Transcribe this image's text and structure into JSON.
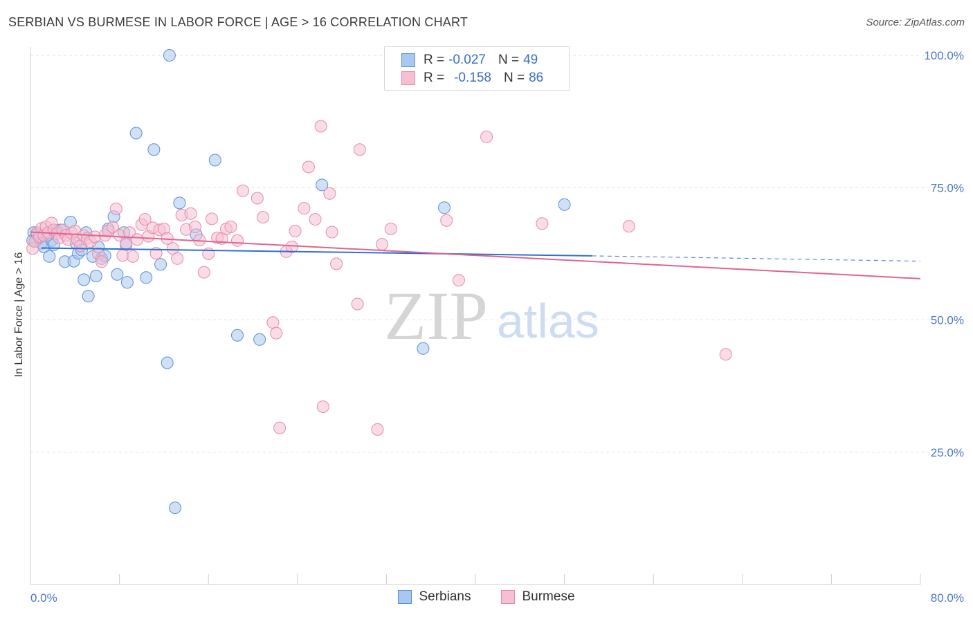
{
  "title": "SERBIAN VS BURMESE IN LABOR FORCE | AGE > 16 CORRELATION CHART",
  "source": "Source: ZipAtlas.com",
  "watermark": {
    "zip": "ZIP",
    "atlas": "atlas"
  },
  "legend": {
    "r_label": "R =",
    "n_label": "N =",
    "rows": [
      {
        "r": "-0.027",
        "n": "49"
      },
      {
        "r": "-0.158",
        "n": "86"
      }
    ]
  },
  "colors": {
    "serbians_fill": "#a9c8ef",
    "serbians_stroke": "#5b8fd6",
    "serbians_line": "#2e6fd0",
    "burmese_fill": "#f6bfd2",
    "burmese_stroke": "#e68aa9",
    "burmese_line": "#e0648f",
    "tick_color": "#4a78c4"
  },
  "chart_data": {
    "type": "scatter",
    "title": "SERBIAN VS BURMESE IN LABOR FORCE | AGE > 16 CORRELATION CHART",
    "xlabel": "",
    "ylabel": "In Labor Force | Age > 16",
    "xlim": [
      0,
      80
    ],
    "ylim": [
      0,
      102
    ],
    "x_tick_labels": [
      "0.0%",
      "80.0%"
    ],
    "y_ticks": [
      25,
      50,
      75,
      100
    ],
    "y_tick_labels": [
      "25.0%",
      "50.0%",
      "75.0%",
      "100.0%"
    ],
    "grid": true,
    "legend_position": "bottom",
    "series": [
      {
        "name": "Serbians",
        "r": -0.027,
        "n": 49,
        "trend": {
          "x0": 1.0,
          "y0": 63.6,
          "x1": 50.5,
          "y1": 62.1,
          "dashed_to_x": 80,
          "dashed_to_y": 61.1
        },
        "points": [
          [
            0.3,
            66.5
          ],
          [
            0.5,
            65.0
          ],
          [
            0.8,
            65.5
          ],
          [
            1.0,
            64.5
          ],
          [
            1.2,
            63.8
          ],
          [
            1.5,
            66.0
          ],
          [
            1.7,
            62.0
          ],
          [
            1.9,
            65.0
          ],
          [
            2.1,
            64.2
          ],
          [
            2.4,
            66.8
          ],
          [
            2.7,
            67.0
          ],
          [
            3.1,
            61.0
          ],
          [
            3.6,
            68.5
          ],
          [
            3.9,
            61.1
          ],
          [
            4.1,
            64.5
          ],
          [
            4.3,
            62.6
          ],
          [
            4.6,
            63.2
          ],
          [
            4.8,
            57.6
          ],
          [
            5.0,
            66.5
          ],
          [
            5.2,
            54.5
          ],
          [
            5.6,
            62.0
          ],
          [
            5.9,
            58.3
          ],
          [
            6.1,
            63.8
          ],
          [
            6.4,
            61.6
          ],
          [
            6.7,
            62.1
          ],
          [
            7.0,
            67.2
          ],
          [
            7.5,
            69.5
          ],
          [
            7.8,
            58.6
          ],
          [
            8.4,
            66.5
          ],
          [
            8.6,
            64.2
          ],
          [
            8.7,
            57.1
          ],
          [
            9.5,
            85.3
          ],
          [
            10.4,
            58.0
          ],
          [
            11.1,
            82.2
          ],
          [
            11.7,
            60.5
          ],
          [
            12.3,
            41.9
          ],
          [
            12.5,
            100.0
          ],
          [
            13.0,
            14.5
          ],
          [
            13.4,
            72.1
          ],
          [
            14.9,
            66.1
          ],
          [
            16.6,
            80.2
          ],
          [
            18.6,
            47.1
          ],
          [
            20.6,
            46.3
          ],
          [
            26.2,
            75.5
          ],
          [
            35.3,
            44.6
          ],
          [
            37.2,
            71.2
          ],
          [
            48.0,
            71.8
          ],
          [
            0.2,
            65.0
          ],
          [
            0.6,
            66.2
          ]
        ]
      },
      {
        "name": "Burmese",
        "r": -0.158,
        "n": 86,
        "trend": {
          "x0": 0,
          "y0": 66.6,
          "x1": 80,
          "y1": 57.8
        },
        "points": [
          [
            0.2,
            63.5
          ],
          [
            0.4,
            64.8
          ],
          [
            0.6,
            66.5
          ],
          [
            0.8,
            65.7
          ],
          [
            1.0,
            67.3
          ],
          [
            1.2,
            66.0
          ],
          [
            1.4,
            67.6
          ],
          [
            1.6,
            66.5
          ],
          [
            1.9,
            68.3
          ],
          [
            2.1,
            67.0
          ],
          [
            2.4,
            66.3
          ],
          [
            2.6,
            65.5
          ],
          [
            2.9,
            67.0
          ],
          [
            3.2,
            66.0
          ],
          [
            3.4,
            65.2
          ],
          [
            3.7,
            66.4
          ],
          [
            4.0,
            66.8
          ],
          [
            4.2,
            65.2
          ],
          [
            4.5,
            64.0
          ],
          [
            4.8,
            65.9
          ],
          [
            5.1,
            65.4
          ],
          [
            5.4,
            64.8
          ],
          [
            5.8,
            65.7
          ],
          [
            6.1,
            62.5
          ],
          [
            6.4,
            61.0
          ],
          [
            6.7,
            66.0
          ],
          [
            7.0,
            66.8
          ],
          [
            7.4,
            67.5
          ],
          [
            7.7,
            71.0
          ],
          [
            8.0,
            66.0
          ],
          [
            8.3,
            62.2
          ],
          [
            8.6,
            64.5
          ],
          [
            8.9,
            66.5
          ],
          [
            9.2,
            62.0
          ],
          [
            9.6,
            65.2
          ],
          [
            10.0,
            68.0
          ],
          [
            10.3,
            69.0
          ],
          [
            10.6,
            65.8
          ],
          [
            11.0,
            67.4
          ],
          [
            11.3,
            62.6
          ],
          [
            11.6,
            67.0
          ],
          [
            12.0,
            67.2
          ],
          [
            12.3,
            65.4
          ],
          [
            12.8,
            63.5
          ],
          [
            13.2,
            61.6
          ],
          [
            13.6,
            69.8
          ],
          [
            14.0,
            67.1
          ],
          [
            14.4,
            70.1
          ],
          [
            14.8,
            67.6
          ],
          [
            15.2,
            65.1
          ],
          [
            15.6,
            59.0
          ],
          [
            16.0,
            62.5
          ],
          [
            16.3,
            69.1
          ],
          [
            16.8,
            65.5
          ],
          [
            17.2,
            65.4
          ],
          [
            17.6,
            67.2
          ],
          [
            18.0,
            67.6
          ],
          [
            18.6,
            65.0
          ],
          [
            19.1,
            74.4
          ],
          [
            20.4,
            73.0
          ],
          [
            20.9,
            69.4
          ],
          [
            21.8,
            49.5
          ],
          [
            22.1,
            47.5
          ],
          [
            22.4,
            29.6
          ],
          [
            23.0,
            62.9
          ],
          [
            23.5,
            63.8
          ],
          [
            23.8,
            66.8
          ],
          [
            24.6,
            71.1
          ],
          [
            25.0,
            78.9
          ],
          [
            25.6,
            69.0
          ],
          [
            26.1,
            86.6
          ],
          [
            26.3,
            33.6
          ],
          [
            26.9,
            73.9
          ],
          [
            27.1,
            66.6
          ],
          [
            27.5,
            60.6
          ],
          [
            29.4,
            53.0
          ],
          [
            29.6,
            82.2
          ],
          [
            31.2,
            29.3
          ],
          [
            31.6,
            64.3
          ],
          [
            32.4,
            67.2
          ],
          [
            37.4,
            68.8
          ],
          [
            38.5,
            57.5
          ],
          [
            41.0,
            84.6
          ],
          [
            46.0,
            68.2
          ],
          [
            53.8,
            67.7
          ],
          [
            62.5,
            43.5
          ]
        ]
      }
    ]
  },
  "bottom_legend": [
    "Serbians",
    "Burmese"
  ]
}
